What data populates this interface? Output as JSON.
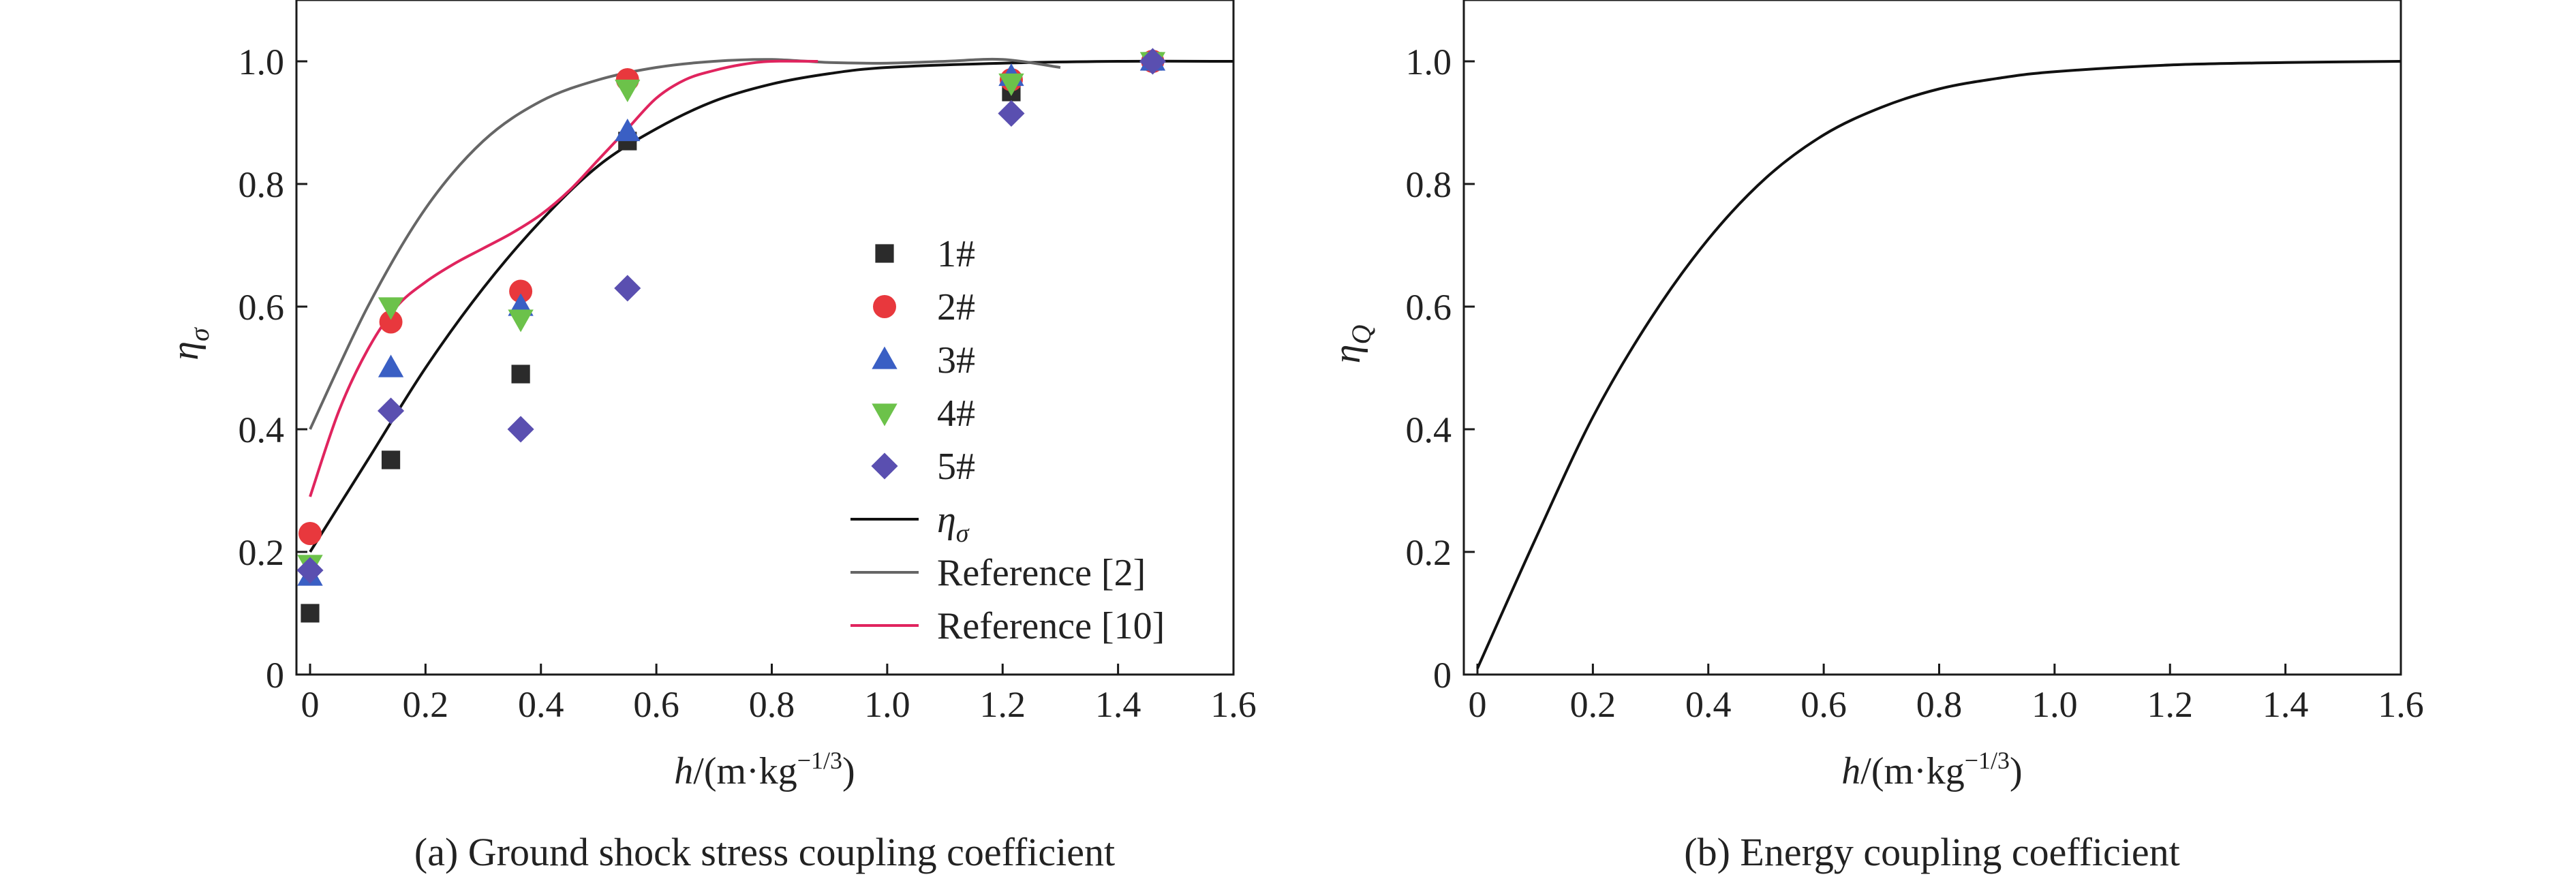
{
  "chart_data": [
    {
      "type": "scatter",
      "caption": "(a) Ground shock stress coupling coefficient",
      "xlabel": "h/(m·kg⁻¹ᐟ³)",
      "ylabel": "ησ",
      "xlim": [
        0,
        1.6
      ],
      "ylim": [
        0,
        1.1
      ],
      "xticks": [
        "0",
        "0.2",
        "0.4",
        "0.6",
        "0.8",
        "1.0",
        "1.2",
        "1.4",
        "1.6"
      ],
      "yticks": [
        "0",
        "0.2",
        "0.4",
        "0.6",
        "0.8",
        "1.0"
      ],
      "grid": false,
      "legend_position": "center-right",
      "series": [
        {
          "name": "1#",
          "marker": "square",
          "color": "#2b2b2b",
          "x": [
            0,
            0.14,
            0.365,
            0.55,
            1.215,
            1.46
          ],
          "y": [
            0.1,
            0.35,
            0.49,
            0.87,
            0.95,
            1.0
          ]
        },
        {
          "name": "2#",
          "marker": "circle",
          "color": "#e8383d",
          "x": [
            0,
            0.14,
            0.365,
            0.55,
            1.215,
            1.46
          ],
          "y": [
            0.23,
            0.575,
            0.625,
            0.97,
            0.97,
            1.0
          ]
        },
        {
          "name": "3#",
          "marker": "triangle-up",
          "color": "#3a5fc4",
          "x": [
            0,
            0.14,
            0.365,
            0.55,
            1.215,
            1.46
          ],
          "y": [
            0.16,
            0.5,
            0.6,
            0.885,
            0.975,
            1.0
          ]
        },
        {
          "name": "4#",
          "marker": "triangle-down",
          "color": "#6cc24a",
          "x": [
            0,
            0.14,
            0.365,
            0.55,
            1.215,
            1.46
          ],
          "y": [
            0.18,
            0.6,
            0.58,
            0.955,
            0.965,
            1.0
          ]
        },
        {
          "name": "5#",
          "marker": "diamond",
          "color": "#5a4fb0",
          "x": [
            0,
            0.14,
            0.365,
            0.55,
            1.215,
            1.46
          ],
          "y": [
            0.17,
            0.43,
            0.4,
            0.63,
            0.915,
            1.0
          ]
        }
      ],
      "curves": [
        {
          "name": "ησ",
          "color": "#111111",
          "x": [
            0,
            0.1,
            0.2,
            0.3,
            0.4,
            0.5,
            0.6,
            0.7,
            0.8,
            0.9,
            1.0,
            1.2,
            1.4,
            1.6
          ],
          "y": [
            0.2,
            0.35,
            0.5,
            0.63,
            0.74,
            0.83,
            0.89,
            0.935,
            0.963,
            0.98,
            0.99,
            0.997,
            1.0,
            1.0
          ]
        },
        {
          "name": "Reference [2]",
          "color": "#666666",
          "x": [
            0,
            0.1,
            0.2,
            0.3,
            0.4,
            0.5,
            0.6,
            0.7,
            0.8,
            0.9,
            1.0,
            1.1,
            1.2,
            1.3
          ],
          "y": [
            0.4,
            0.6,
            0.76,
            0.87,
            0.935,
            0.97,
            0.99,
            1.0,
            1.003,
            0.998,
            0.997,
            1.0,
            1.003,
            0.99
          ]
        },
        {
          "name": "Reference [10]",
          "color": "#e0245e",
          "x": [
            0,
            0.05,
            0.1,
            0.15,
            0.2,
            0.25,
            0.3,
            0.35,
            0.4,
            0.45,
            0.5,
            0.55,
            0.6,
            0.65,
            0.7,
            0.75,
            0.8,
            0.88
          ],
          "y": [
            0.29,
            0.43,
            0.53,
            0.6,
            0.64,
            0.67,
            0.695,
            0.72,
            0.75,
            0.79,
            0.84,
            0.89,
            0.94,
            0.97,
            0.985,
            0.995,
            1.0,
            1.0
          ]
        }
      ]
    },
    {
      "type": "line",
      "caption": "(b) Energy coupling coefficient",
      "xlabel": "h/(m·kg⁻¹ᐟ³)",
      "ylabel": "ηQ",
      "xlim": [
        0,
        1.6
      ],
      "ylim": [
        0,
        1.1
      ],
      "xticks": [
        "0",
        "0.2",
        "0.4",
        "0.6",
        "0.8",
        "1.0",
        "1.2",
        "1.4",
        "1.6"
      ],
      "yticks": [
        "0",
        "0.2",
        "0.4",
        "0.6",
        "0.8",
        "1.0"
      ],
      "grid": false,
      "series": [
        {
          "name": "ηQ",
          "color": "#111111",
          "x": [
            0,
            0.1,
            0.2,
            0.3,
            0.4,
            0.5,
            0.6,
            0.7,
            0.8,
            0.9,
            1.0,
            1.2,
            1.4,
            1.6
          ],
          "y": [
            0.01,
            0.22,
            0.42,
            0.58,
            0.71,
            0.81,
            0.88,
            0.925,
            0.955,
            0.972,
            0.983,
            0.994,
            0.998,
            1.0
          ]
        }
      ]
    }
  ]
}
